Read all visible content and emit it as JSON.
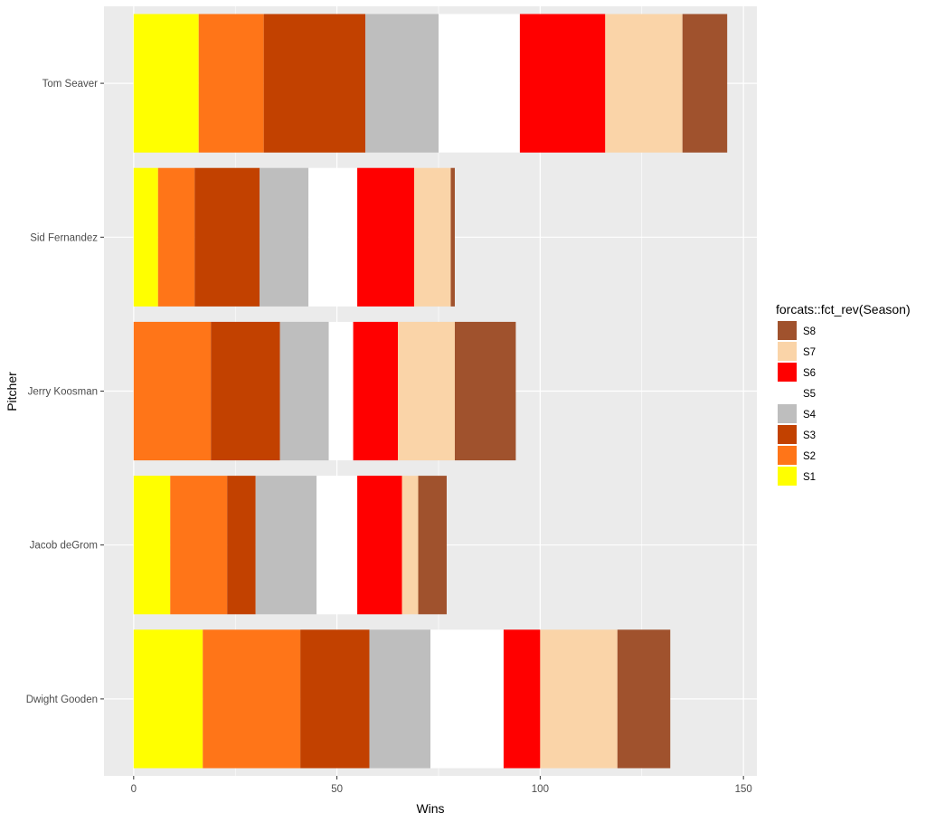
{
  "chart_data": {
    "type": "bar",
    "orientation": "horizontal",
    "stacked": true,
    "categories": [
      "Dwight Gooden",
      "Jacob deGrom",
      "Jerry Koosman",
      "Sid Fernandez",
      "Tom Seaver"
    ],
    "series": [
      {
        "name": "S1",
        "color": "#FFFF00",
        "values": [
          17,
          9,
          0,
          6,
          16
        ]
      },
      {
        "name": "S2",
        "color": "#FF7518",
        "values": [
          24,
          14,
          19,
          9,
          16
        ]
      },
      {
        "name": "S3",
        "color": "#C24100",
        "values": [
          17,
          7,
          17,
          16,
          25
        ]
      },
      {
        "name": "S4",
        "color": "#BEBEBE",
        "values": [
          15,
          15,
          12,
          12,
          18
        ]
      },
      {
        "name": "S5",
        "color": "#FFFFFF",
        "values": [
          18,
          10,
          6,
          12,
          20
        ]
      },
      {
        "name": "S6",
        "color": "#FF0000",
        "values": [
          9,
          11,
          11,
          14,
          21
        ]
      },
      {
        "name": "S7",
        "color": "#FAD4A8",
        "values": [
          19,
          4,
          14,
          9,
          19
        ]
      },
      {
        "name": "S8",
        "color": "#A0522D",
        "values": [
          13,
          7,
          15,
          1,
          11
        ]
      }
    ],
    "xlabel": "Wins",
    "ylabel": "Pitcher",
    "xlim": [
      -7.3,
      153.3
    ],
    "xticks": [
      0,
      50,
      100,
      150
    ],
    "grid": true,
    "legend": {
      "title": "forcats::fct_rev(Season)",
      "placement": "right",
      "order": [
        "S8",
        "S7",
        "S6",
        "S5",
        "S4",
        "S3",
        "S2",
        "S1"
      ]
    }
  }
}
